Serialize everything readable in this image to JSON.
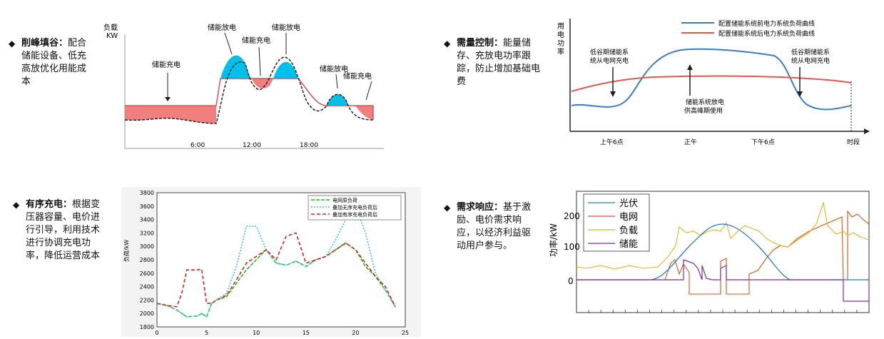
{
  "captions": {
    "c1": {
      "bullet": "◆",
      "title": "削峰填谷：",
      "text": "配合储能设备、低充高放优化用能成本"
    },
    "c2": {
      "bullet": "◆",
      "title": "需量控制：",
      "text": "能量储存、充放电功率跟踪，防止增加基础电费"
    },
    "c3": {
      "bullet": "◆",
      "title": "有序充电：",
      "text": "根据变压器容量、电价进行引导，利用技术进行协调充电功率，降低运营成本"
    },
    "c4": {
      "bullet": "◆",
      "title": "需求响应：",
      "text": "基于激励、电价需求响应，以经济利益驱动用户参与。"
    }
  },
  "chart_data": [
    {
      "type": "area",
      "ylabel": "负载\nKW",
      "tick_labels": [
        "6:00",
        "12:00",
        "18:00"
      ],
      "annotations": [
        "储能充电",
        "储能放电",
        "储能充电",
        "储能放电",
        "储能放电",
        "储能充电"
      ],
      "colors": {
        "charge": "#f08080",
        "discharge": "#00bfe8"
      }
    },
    {
      "type": "line",
      "ylabel": "用电功率",
      "xlabel": "时段",
      "tick_labels": [
        "上午6点",
        "正午",
        "下午6点"
      ],
      "series": [
        {
          "name": "配置储能系统前电力系统负荷曲线",
          "color": "#3b7cc4"
        },
        {
          "name": "配置储能系统后电力系统负荷曲线",
          "color": "#e0584e"
        }
      ],
      "annotations": [
        "低谷期储能系统从电网充电",
        "储能系统放电供高峰期使用",
        "低谷期储能系统从电网充电"
      ]
    },
    {
      "type": "line",
      "ylabel": "负荷/kW",
      "ylim": [
        1800,
        3800
      ],
      "xlim": [
        0,
        25
      ],
      "x_ticks": [
        0,
        5,
        10,
        15,
        20,
        25
      ],
      "y_ticks": [
        1800,
        2000,
        2200,
        2400,
        2600,
        2800,
        3000,
        3200,
        3400,
        3600,
        3800
      ],
      "x": [
        0,
        1,
        2,
        2.5,
        3,
        4,
        4.5,
        5,
        5.5,
        6,
        7,
        8,
        9,
        10,
        11,
        12,
        13,
        14,
        15,
        16,
        17,
        18,
        19,
        20,
        21,
        22,
        23,
        24
      ],
      "series": [
        {
          "name": "电网原负荷",
          "color": "#22bb22",
          "values": [
            2150,
            2120,
            2050,
            2000,
            1950,
            1960,
            2000,
            1950,
            2150,
            2200,
            2250,
            2450,
            2650,
            2800,
            2950,
            2750,
            2720,
            2780,
            2700,
            2800,
            2850,
            2950,
            3050,
            2950,
            2700,
            2550,
            2350,
            2100
          ]
        },
        {
          "name": "叠加无序充电负荷后",
          "color": "#33cccc",
          "values": [
            2150,
            2120,
            2050,
            2000,
            1950,
            1960,
            2000,
            1950,
            2150,
            2200,
            2300,
            2700,
            3300,
            3300,
            2950,
            2750,
            2720,
            2780,
            2700,
            2800,
            2850,
            3100,
            3400,
            3600,
            3200,
            2600,
            2350,
            2100
          ]
        },
        {
          "name": "叠加有序充电负荷后",
          "color": "#dd2222",
          "values": [
            2150,
            2120,
            2100,
            2300,
            2650,
            2650,
            2660,
            2150,
            2150,
            2200,
            2270,
            2500,
            2750,
            2850,
            2950,
            2800,
            3150,
            3200,
            2750,
            2800,
            2850,
            2950,
            3050,
            2950,
            2750,
            2550,
            2400,
            2100
          ]
        }
      ]
    },
    {
      "type": "line",
      "ylabel": "功率/kW",
      "ylim": [
        -70,
        270
      ],
      "y_ticks": [
        0,
        100,
        200
      ],
      "series": [
        {
          "name": "光伏",
          "color": "#2a7bbf"
        },
        {
          "name": "电网",
          "color": "#d9541a"
        },
        {
          "name": "负载",
          "color": "#e8b21e"
        },
        {
          "name": "储能",
          "color": "#7e2f8e"
        }
      ]
    }
  ]
}
